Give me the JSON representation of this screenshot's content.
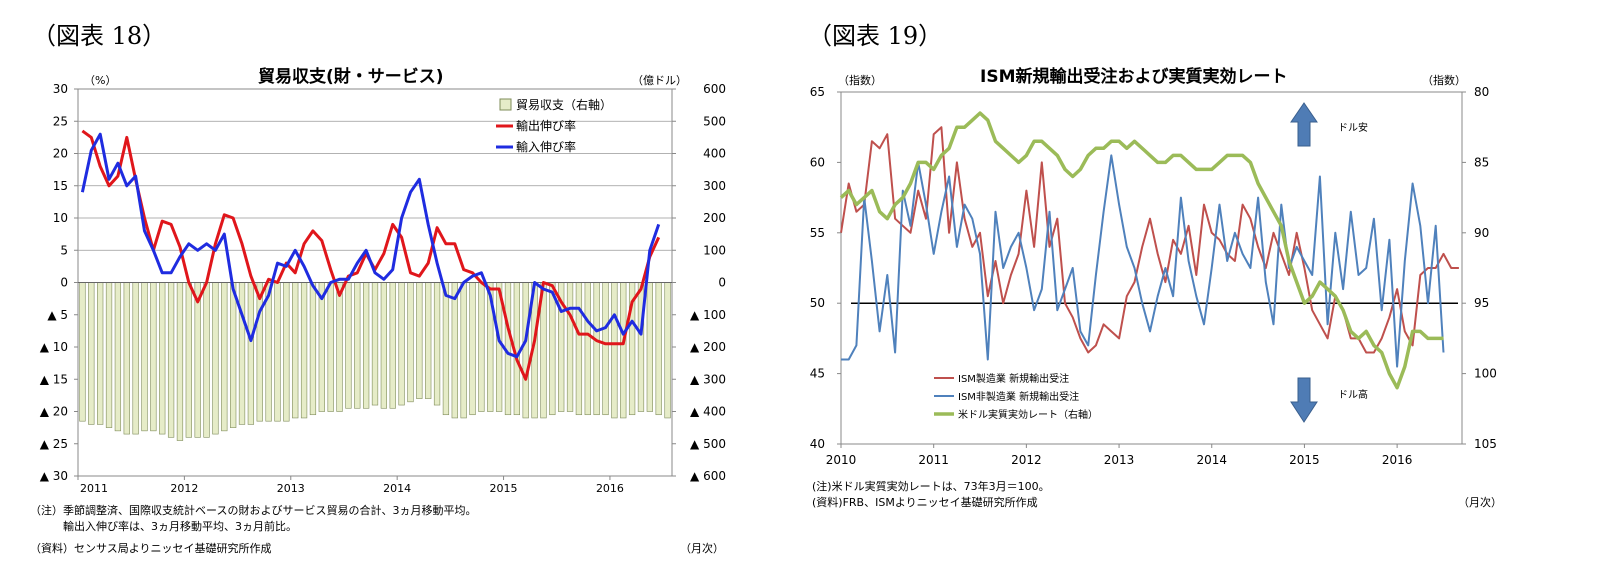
{
  "left": {
    "figure_label": "（図表 18）",
    "title": "貿易収支(財・サービス)",
    "y_unit_left": "（%）",
    "y_unit_right": "（億ドル）",
    "legend_bar": "貿易収支（右軸）",
    "legend_export": "輸出伸び率",
    "legend_import": "輸入伸び率",
    "note1": "（注）季節調整済、国際収支統計ベースの財およびサービス貿易の合計、3ヵ月移動平均。",
    "note2": "　　　輸出入伸び率は、3ヵ月移動平均、3ヵ月前比。",
    "source": "（資料）センサス局よりニッセイ基礎研究所作成",
    "x_unit": "（月次）"
  },
  "right": {
    "figure_label": "（図表 19）",
    "title": "ISM新規輸出受注および実質実効レート",
    "y_unit_left": "（指数）",
    "y_unit_right": "（指数）",
    "arrow_up_label": "ドル安",
    "arrow_down_label": "ドル高",
    "legend_mfg": "ISM製造業 新規輸出受注",
    "legend_nonmfg": "ISM非製造業 新規輸出受注",
    "legend_reer": "米ドル実質実効レート（右軸）",
    "note1": "(注)米ドル実質実効レートは、73年3月＝100。",
    "source": "(資料)FRB、ISMよりニッセイ基礎研究所作成",
    "x_unit": "（月次）"
  },
  "chart_data": [
    {
      "type": "bar+line",
      "title": "貿易収支(財・サービス)",
      "x_tick_labels": [
        "2011",
        "2012",
        "2013",
        "2014",
        "2015",
        "2016"
      ],
      "y_left_ticks": [
        "30",
        "25",
        "20",
        "15",
        "10",
        "5",
        "0",
        "▲ 5",
        "▲ 10",
        "▲ 15",
        "▲ 20",
        "▲ 25",
        "▲ 30"
      ],
      "y_right_ticks": [
        "600",
        "500",
        "400",
        "300",
        "200",
        "100",
        "0",
        "▲ 100",
        "▲ 200",
        "▲ 300",
        "▲ 400",
        "▲ 500",
        "▲ 600"
      ],
      "ylim_left": [
        -30,
        30
      ],
      "ylim_right": [
        -600,
        600
      ],
      "x_start": "2011-01",
      "bars": {
        "name": "貿易収支（右軸）",
        "color": "#e6ecc8",
        "values": [
          -430,
          -440,
          -440,
          -450,
          -460,
          -470,
          -470,
          -460,
          -460,
          -470,
          -480,
          -490,
          -480,
          -480,
          -480,
          -470,
          -460,
          -450,
          -440,
          -440,
          -430,
          -430,
          -430,
          -430,
          -420,
          -420,
          -410,
          -400,
          -400,
          -400,
          -390,
          -390,
          -390,
          -380,
          -390,
          -390,
          -380,
          -370,
          -360,
          -360,
          -380,
          -410,
          -420,
          -420,
          -410,
          -400,
          -400,
          -400,
          -410,
          -410,
          -420,
          -420,
          -420,
          -410,
          -400,
          -400,
          -410,
          -410,
          -410,
          -410,
          -420,
          -420,
          -410,
          -400,
          -400,
          -410,
          -420
        ]
      },
      "series": [
        {
          "name": "輸出伸び率",
          "color": "#e0161b",
          "values": [
            23.5,
            22.5,
            18,
            15,
            16.5,
            22.5,
            16,
            10,
            5,
            9.5,
            9,
            5.5,
            0,
            -3,
            0,
            6,
            10.5,
            10,
            6,
            1,
            -2.5,
            0.5,
            0,
            3,
            1.5,
            6,
            8,
            6.5,
            2,
            -2,
            1,
            1.5,
            4.5,
            2,
            4.5,
            9,
            7,
            1.5,
            1,
            3,
            8.5,
            6,
            6,
            2,
            1.5,
            0,
            -1,
            -1,
            -7,
            -12,
            -15,
            -9,
            0,
            -0.5,
            -3,
            -5,
            -8,
            -8,
            -9,
            -9.5,
            -9.5,
            -9.5,
            -3,
            -1,
            4,
            7
          ]
        },
        {
          "name": "輸入伸び率",
          "color": "#1f2ce0",
          "values": [
            14,
            20.5,
            23,
            16,
            18.5,
            15,
            16.5,
            8,
            5,
            1.5,
            1.5,
            4,
            6,
            5,
            6,
            5,
            7.5,
            -1,
            -5,
            -9,
            -4.5,
            -2,
            3,
            2.5,
            5,
            2.5,
            -0.5,
            -2.5,
            0,
            0.5,
            0.5,
            3,
            5,
            1.5,
            0.5,
            2,
            10,
            14,
            16,
            9,
            3,
            -2,
            -2.5,
            0,
            1,
            1.5,
            -2,
            -9,
            -11,
            -11.5,
            -9,
            0,
            -1,
            -1.5,
            -4.5,
            -4,
            -4,
            -6,
            -7.5,
            -7,
            -5,
            -8,
            -6,
            -8,
            5,
            9
          ]
        }
      ]
    },
    {
      "type": "line",
      "title": "ISM新規輸出受注および実質実効レート",
      "x_tick_labels": [
        "2010",
        "2011",
        "2012",
        "2013",
        "2014",
        "2015",
        "2016"
      ],
      "y_left_ticks": [
        "65",
        "60",
        "55",
        "50",
        "45",
        "40"
      ],
      "y_right_ticks": [
        "80",
        "85",
        "90",
        "95",
        "100",
        "105"
      ],
      "ylim_left": [
        40,
        65
      ],
      "ylim_right_inverted": [
        80,
        105
      ],
      "reference_line": 50,
      "x_start": "2010-01",
      "series": [
        {
          "name": "ISM製造業 新規輸出受注",
          "axis": "left",
          "color": "#bf504d",
          "values": [
            55,
            58.5,
            56.5,
            57,
            61.5,
            61,
            62,
            56,
            55.5,
            55,
            58,
            56,
            62,
            62.5,
            55,
            60,
            56,
            54,
            55,
            50.5,
            53,
            50,
            52,
            53.5,
            58,
            54,
            60,
            54,
            56,
            50,
            49,
            47.5,
            46.5,
            47,
            48.5,
            48,
            47.5,
            50.5,
            51.5,
            54,
            56,
            53.5,
            51.5,
            54.5,
            53.5,
            55.5,
            52,
            57,
            55,
            54.5,
            53.5,
            53,
            57,
            56,
            54,
            52.5,
            55,
            53.5,
            52,
            55,
            52.5,
            49.5,
            48.5,
            47.5,
            50.5,
            49.5,
            47.5,
            47.5,
            46.5,
            46.5,
            47.5,
            49,
            51,
            48,
            47,
            52,
            52.5,
            52.5,
            53.5,
            52.5,
            52.5
          ]
        },
        {
          "name": "ISM非製造業 新規輸出受注",
          "axis": "left",
          "color": "#4f81bc",
          "values": [
            46,
            46,
            47,
            57.5,
            53,
            48,
            52,
            46.5,
            58,
            55.5,
            60,
            57,
            53.5,
            56.5,
            59,
            54,
            57,
            56,
            53.5,
            46,
            56.5,
            52.5,
            54,
            55,
            52.5,
            49.5,
            51,
            56.5,
            49.5,
            51,
            52.5,
            48,
            47,
            52,
            56.5,
            60.5,
            57,
            54,
            52.5,
            50,
            48,
            50.5,
            52.5,
            50.5,
            57.5,
            53,
            50.5,
            48.5,
            52.5,
            57,
            53,
            55,
            53.5,
            52.5,
            57.5,
            51.5,
            48.5,
            57,
            52.5,
            54,
            53,
            52,
            59,
            48.5,
            55,
            51,
            56.5,
            52,
            52.5,
            56,
            49.5,
            54.5,
            45.5,
            53,
            58.5,
            55.5,
            50,
            55.5,
            46.5
          ]
        },
        {
          "name": "米ドル実質実効レート（右軸）",
          "axis": "right",
          "color": "#9bbb58",
          "values": [
            87.5,
            87,
            88,
            87.5,
            87,
            88.5,
            89,
            88,
            87.5,
            86.5,
            85,
            85,
            85.5,
            84.5,
            84,
            82.5,
            82.5,
            82,
            81.5,
            82,
            83.5,
            84,
            84.5,
            85,
            84.5,
            83.5,
            83.5,
            84,
            84.5,
            85.5,
            86,
            85.5,
            84.5,
            84,
            84,
            83.5,
            83.5,
            84,
            83.5,
            84,
            84.5,
            85,
            85,
            84.5,
            84.5,
            85,
            85.5,
            85.5,
            85.5,
            85,
            84.5,
            84.5,
            84.5,
            85,
            86.5,
            87.5,
            88.5,
            89.5,
            92,
            93.5,
            95,
            94.5,
            93.5,
            94,
            94.5,
            95.5,
            97,
            97.5,
            97,
            98,
            98.5,
            100,
            101,
            99.5,
            97,
            97,
            97.5,
            97.5,
            97.5
          ]
        }
      ]
    }
  ]
}
